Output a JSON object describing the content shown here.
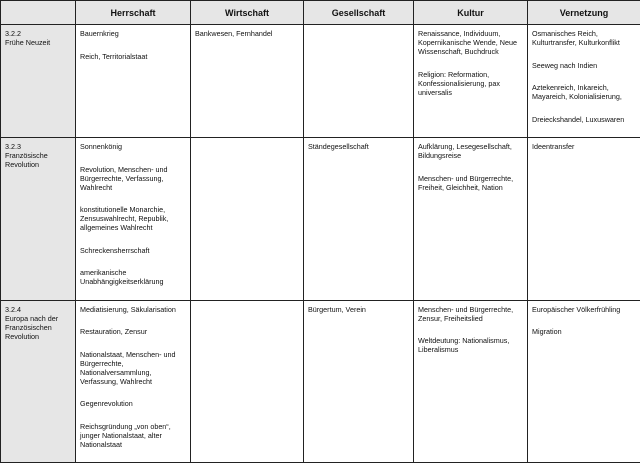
{
  "headers": [
    "",
    "Herrschaft",
    "Wirtschaft",
    "Gesellschaft",
    "Kultur",
    "Vernetzung"
  ],
  "rows": [
    {
      "section": [
        "3.2.2",
        "Frühe Neuzeit"
      ],
      "cells": [
        [
          "Bauernkrieg",
          "Reich, Territorialstaat"
        ],
        [
          "Bankwesen, Fernhandel"
        ],
        [],
        [
          "Renaissance, Individuum, Kopernikanische Wende, Neue Wissenschaft, Buchdruck",
          "Religion: Reformation, Konfessionalisierung, pax universalis"
        ],
        [
          "Osmanisches Reich, Kulturtransfer, Kulturkonflikt",
          "Seeweg nach Indien",
          "Aztekenreich, Inkareich, Mayareich, Kolonialisierung,",
          "Dreieckshandel, Luxuswaren"
        ]
      ]
    },
    {
      "section": [
        "3.2.3",
        "Französische",
        "Revolution"
      ],
      "cells": [
        [
          "Sonnenkönig",
          "Revolution, Menschen- und Bürgerrechte, Verfassung, Wahlrecht",
          "konstitutionelle Monarchie, Zensuswahlrecht, Republik, allgemeines Wahlrecht",
          "Schreckensherrschaft",
          "amerikanische Unabhängigkeitserklärung"
        ],
        [],
        [
          "Ständegesellschaft"
        ],
        [
          "Aufklärung, Lesegesellschaft, Bildungsreise",
          "Menschen- und Bürgerrechte, Freiheit, Gleichheit, Nation"
        ],
        [
          "Ideentransfer"
        ]
      ]
    },
    {
      "section": [
        "3.2.4",
        "Europa nach der",
        "Französischen",
        "Revolution"
      ],
      "cells": [
        [
          "Mediatisierung, Säkularisation",
          "Restauration, Zensur",
          "Nationalstaat, Menschen- und Bürgerrechte, Nationalversammlung, Verfassung, Wahlrecht",
          "Gegenrevolution",
          "Reichsgründung „von oben“, junger Nationalstaat, alter Nationalstaat"
        ],
        [],
        [
          "Bürgertum, Verein"
        ],
        [
          "Menschen- und Bürgerrechte, Zensur, Freiheitslied",
          "Weltdeutung: Nationalismus, Liberalismus"
        ],
        [
          "Europäischer Völkerfrühling",
          "Migration"
        ]
      ]
    }
  ]
}
